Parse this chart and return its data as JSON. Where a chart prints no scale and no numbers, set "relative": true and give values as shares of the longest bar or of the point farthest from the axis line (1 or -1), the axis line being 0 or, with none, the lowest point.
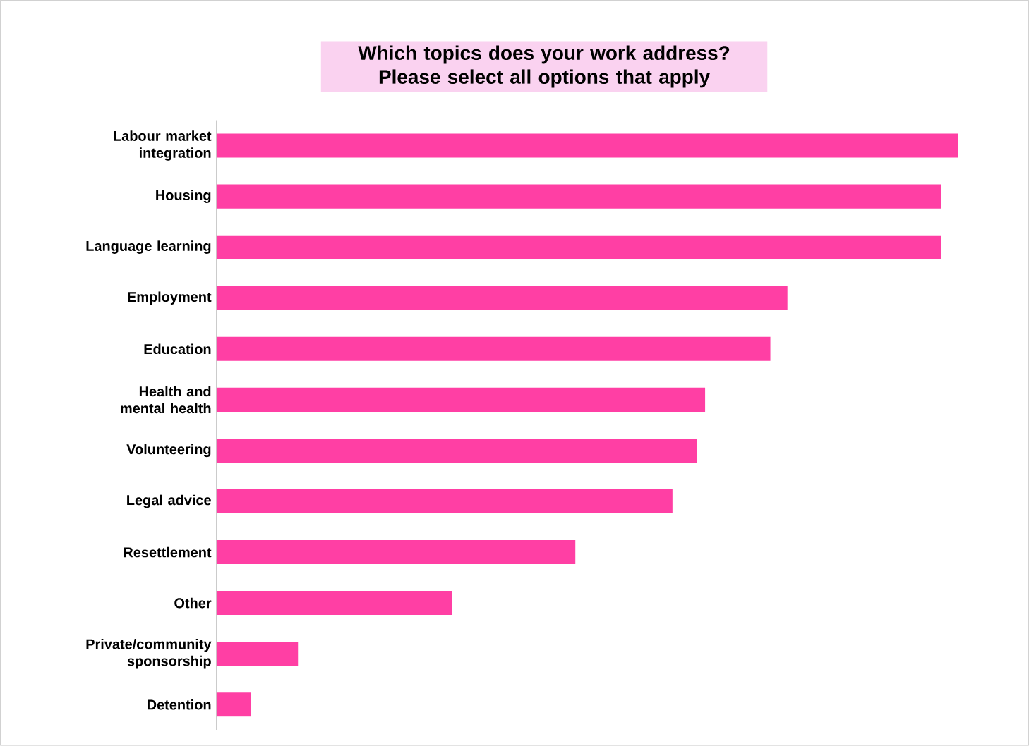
{
  "chart_data": {
    "type": "bar",
    "orientation": "horizontal",
    "relative": true,
    "title": "Which topics does your work address? Please select all options that apply",
    "categories": [
      "Labour market integration",
      "Housing",
      "Language learning",
      "Employment",
      "Education",
      "Health and mental health",
      "Volunteering",
      "Legal advice",
      "Resettlement",
      "Other",
      "Private/community sponsorship",
      "Detention"
    ],
    "values": [
      1,
      0.977,
      0.977,
      0.77,
      0.747,
      0.659,
      0.648,
      0.615,
      0.484,
      0.318,
      0.11,
      0.046
    ],
    "color": "#ff3fa4"
  }
}
